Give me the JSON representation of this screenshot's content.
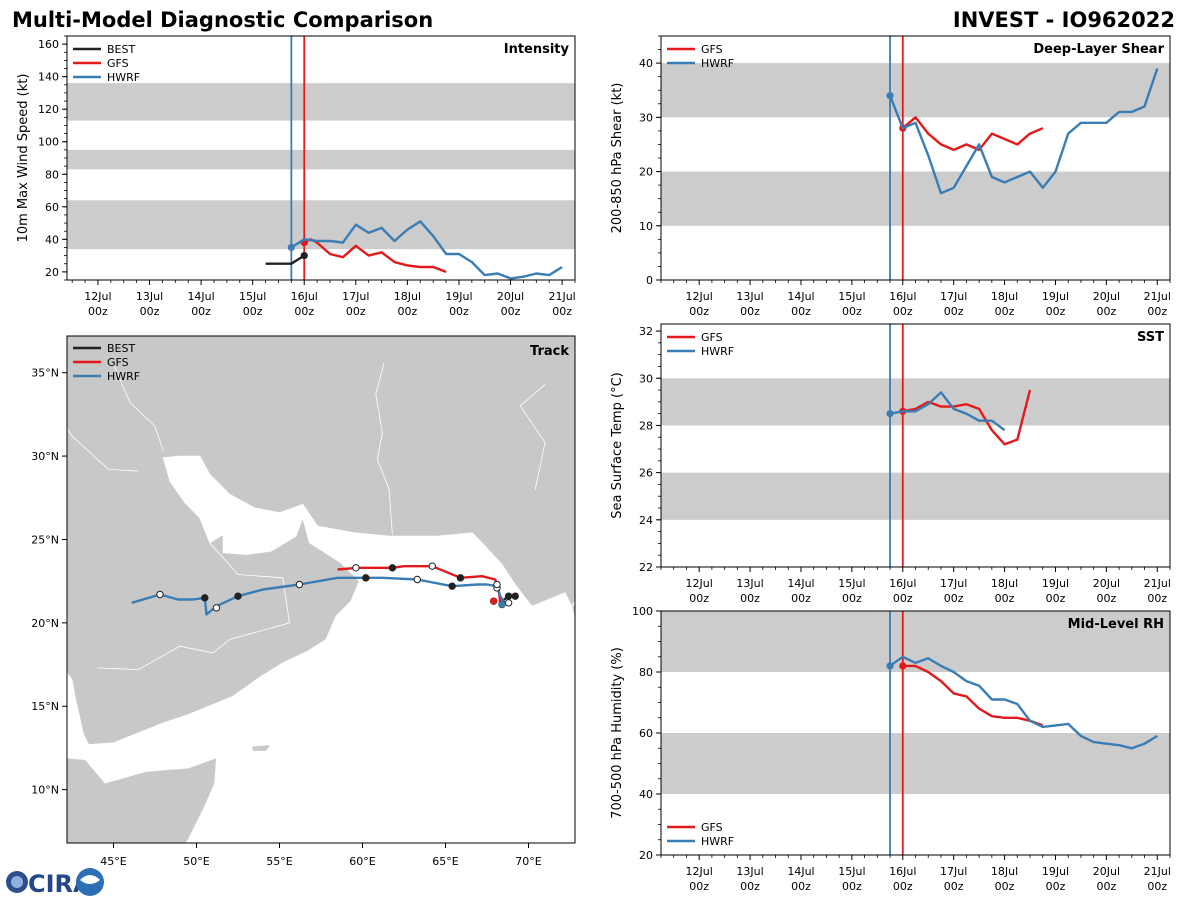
{
  "header": {
    "title": "Multi-Model Diagnostic Comparison",
    "storm": "INVEST - IO962022"
  },
  "colors": {
    "BEST": "#222222",
    "GFS": "#e31a1c",
    "HWRF": "#3a7db5",
    "band": "#cccccc",
    "land": "#c8c8c8"
  },
  "time_ticks": [
    {
      "d": "12Jul",
      "h": "00z"
    },
    {
      "d": "13Jul",
      "h": "00z"
    },
    {
      "d": "14Jul",
      "h": "00z"
    },
    {
      "d": "15Jul",
      "h": "00z"
    },
    {
      "d": "16Jul",
      "h": "00z"
    },
    {
      "d": "17Jul",
      "h": "00z"
    },
    {
      "d": "18Jul",
      "h": "00z"
    },
    {
      "d": "19Jul",
      "h": "00z"
    },
    {
      "d": "20Jul",
      "h": "00z"
    },
    {
      "d": "21Jul",
      "h": "00z"
    }
  ],
  "chart_data": [
    {
      "id": "intensity",
      "type": "line",
      "title": "Intensity",
      "ylabel": "10m Max Wind Speed (kt)",
      "ylim": [
        15,
        165
      ],
      "yticks": [
        20,
        40,
        60,
        80,
        100,
        120,
        140,
        160
      ],
      "xlim_days": [
        11.4,
        21.25
      ],
      "vlines": [
        {
          "day": 15.75,
          "color": "HWRF"
        },
        {
          "day": 16.0,
          "color": "GFS"
        }
      ],
      "bands": [
        [
          34,
          64
        ],
        [
          83,
          95
        ],
        [
          113,
          136
        ]
      ],
      "legend": [
        "BEST",
        "GFS",
        "HWRF"
      ],
      "series": [
        {
          "name": "BEST",
          "x": [
            15.25,
            15.5,
            15.75,
            16.0
          ],
          "y": [
            25,
            25,
            25,
            30
          ],
          "marker": 16.0
        },
        {
          "name": "GFS",
          "x": [
            16.0,
            16.125,
            16.25,
            16.5,
            16.75,
            17.0,
            17.25,
            17.5,
            17.75,
            18.0,
            18.25,
            18.5,
            18.75
          ],
          "y": [
            38,
            40,
            38,
            31,
            29,
            36,
            30,
            32,
            26,
            24,
            23,
            23,
            20
          ],
          "marker": 16.0
        },
        {
          "name": "HWRF",
          "x": [
            15.75,
            16.0,
            16.25,
            16.5,
            16.75,
            17.0,
            17.25,
            17.5,
            17.75,
            18.0,
            18.25,
            18.5,
            18.75,
            19.0,
            19.25,
            19.5,
            19.75,
            20.0,
            20.25,
            20.5,
            20.75,
            21.0
          ],
          "y": [
            35,
            40,
            39,
            39,
            38,
            49,
            44,
            47,
            39,
            46,
            51,
            42,
            31,
            31,
            26,
            18,
            19,
            16,
            17,
            19,
            18,
            23
          ],
          "marker": 15.75
        }
      ]
    },
    {
      "id": "shear",
      "type": "line",
      "title": "Deep-Layer Shear",
      "ylabel": "200-850 hPa Shear (kt)",
      "ylim": [
        0,
        45
      ],
      "yticks": [
        0,
        10,
        20,
        30,
        40
      ],
      "xlim_days": [
        11.25,
        21.25
      ],
      "vlines": [
        {
          "day": 15.75,
          "color": "HWRF"
        },
        {
          "day": 16.0,
          "color": "GFS"
        }
      ],
      "bands": [
        [
          10,
          20
        ],
        [
          30,
          40
        ]
      ],
      "legend": [
        "GFS",
        "HWRF"
      ],
      "series": [
        {
          "name": "GFS",
          "x": [
            16.0,
            16.25,
            16.5,
            16.75,
            17.0,
            17.25,
            17.5,
            17.75,
            18.0,
            18.25,
            18.5,
            18.75
          ],
          "y": [
            28,
            30,
            27,
            25,
            24,
            25,
            24,
            27,
            26,
            25,
            27,
            28
          ],
          "marker": 16.0
        },
        {
          "name": "HWRF",
          "x": [
            15.75,
            16.0,
            16.25,
            16.5,
            16.75,
            17.0,
            17.25,
            17.5,
            17.75,
            18.0,
            18.25,
            18.5,
            18.75,
            19.0,
            19.25,
            19.5,
            19.75,
            20.0,
            20.25,
            20.5,
            20.75,
            21.0
          ],
          "y": [
            34,
            28,
            29,
            23,
            16,
            17,
            21,
            25,
            19,
            18,
            19,
            20,
            17,
            20,
            27,
            29,
            29,
            29,
            31,
            31,
            32,
            39
          ],
          "marker": 15.75
        }
      ]
    },
    {
      "id": "sst",
      "type": "line",
      "title": "SST",
      "ylabel": "Sea Surface Temp (°C)",
      "ylim": [
        22,
        32.3
      ],
      "yticks": [
        22,
        24,
        26,
        28,
        30,
        32
      ],
      "xlim_days": [
        11.25,
        21.25
      ],
      "vlines": [
        {
          "day": 15.75,
          "color": "HWRF"
        },
        {
          "day": 16.0,
          "color": "GFS"
        }
      ],
      "bands": [
        [
          24,
          26
        ],
        [
          28,
          30
        ]
      ],
      "legend": [
        "GFS",
        "HWRF"
      ],
      "series": [
        {
          "name": "GFS",
          "x": [
            16.0,
            16.25,
            16.5,
            16.75,
            17.0,
            17.25,
            17.5,
            17.75,
            18.0,
            18.25,
            18.5
          ],
          "y": [
            28.6,
            28.7,
            29.0,
            28.8,
            28.8,
            28.9,
            28.7,
            27.8,
            27.2,
            27.4,
            29.5
          ],
          "marker": 16.0
        },
        {
          "name": "HWRF",
          "x": [
            15.75,
            16.0,
            16.25,
            16.5,
            16.75,
            17.0,
            17.25,
            17.5,
            17.75,
            18.0
          ],
          "y": [
            28.5,
            28.6,
            28.6,
            28.9,
            29.4,
            28.7,
            28.5,
            28.2,
            28.2,
            27.8
          ],
          "marker": 15.75
        }
      ]
    },
    {
      "id": "rh",
      "type": "line",
      "title": "Mid-Level RH",
      "ylabel": "700-500 hPa Humidity (%)",
      "ylim": [
        20,
        100
      ],
      "yticks": [
        20,
        40,
        60,
        80,
        100
      ],
      "xlim_days": [
        11.25,
        21.25
      ],
      "vlines": [
        {
          "day": 15.75,
          "color": "HWRF"
        },
        {
          "day": 16.0,
          "color": "GFS"
        }
      ],
      "bands": [
        [
          40,
          60
        ],
        [
          80,
          100
        ]
      ],
      "legend": [
        "GFS",
        "HWRF"
      ],
      "series": [
        {
          "name": "GFS",
          "x": [
            16.0,
            16.25,
            16.5,
            16.75,
            17.0,
            17.25,
            17.5,
            17.75,
            18.0,
            18.25,
            18.5,
            18.75
          ],
          "y": [
            82,
            82,
            80,
            77,
            73,
            72,
            68,
            65.5,
            65,
            65,
            64,
            62.5
          ],
          "marker": 16.0
        },
        {
          "name": "HWRF",
          "x": [
            15.75,
            16.0,
            16.25,
            16.5,
            16.75,
            17.0,
            17.25,
            17.5,
            17.75,
            18.0,
            18.25,
            18.5,
            18.75,
            19.0,
            19.25,
            19.5,
            19.75,
            20.0,
            20.25,
            20.5,
            20.75,
            21.0
          ],
          "y": [
            82,
            85,
            83,
            84.5,
            82,
            80,
            77,
            75.5,
            71,
            71,
            69.5,
            64,
            62,
            62.5,
            63,
            59,
            57,
            56.5,
            56,
            55,
            56.5,
            59
          ],
          "marker": 15.75
        }
      ]
    },
    {
      "id": "track",
      "type": "scatter",
      "title": "Track",
      "xlim_lon": [
        42.2,
        72.8
      ],
      "ylim_lat": [
        6.8,
        37.2
      ],
      "lon_ticks": [
        45,
        50,
        55,
        60,
        65,
        70
      ],
      "lon_labels": [
        "45°E",
        "50°E",
        "55°E",
        "60°E",
        "65°E",
        "70°E"
      ],
      "lat_ticks": [
        10,
        15,
        20,
        25,
        30,
        35
      ],
      "lat_labels": [
        "10°N",
        "15°N",
        "20°N",
        "25°N",
        "30°N",
        "35°N"
      ],
      "legend": [
        "BEST",
        "GFS",
        "HWRF"
      ],
      "series": [
        {
          "name": "BEST",
          "lon": [
            69.2,
            68.8,
            68.4
          ],
          "lat": [
            21.6,
            21.6,
            21.3
          ]
        },
        {
          "name": "GFS",
          "lon": [
            68.3,
            68.2,
            68.0,
            67.2,
            65.9,
            64.2,
            62.5,
            61.8,
            60.3,
            59.7,
            58.5
          ],
          "lat": [
            21.2,
            22.0,
            22.6,
            22.8,
            22.7,
            23.4,
            23.4,
            23.3,
            23.3,
            23.3,
            23.2
          ]
        },
        {
          "name": "HWRF",
          "lon": [
            68.6,
            68.5,
            68.3,
            68.1,
            67.5,
            66.9,
            65.4,
            63.3,
            61.2,
            60.2,
            58.5,
            56.2,
            54.0,
            52.5,
            51.2,
            50.6,
            50.5,
            49.8,
            48.9,
            47.8,
            46.1
          ],
          "lat": [
            21.2,
            21.3,
            21.6,
            22.2,
            22.3,
            22.3,
            22.2,
            22.6,
            22.7,
            22.7,
            22.7,
            22.3,
            22.0,
            21.6,
            21.0,
            20.5,
            21.5,
            21.4,
            21.4,
            21.7,
            21.2
          ]
        }
      ],
      "open_markers": [
        {
          "name": "HWRF",
          "lon": [
            68.8,
            68.1,
            63.3,
            56.2,
            51.2,
            47.8
          ],
          "lat": [
            21.2,
            22.1,
            22.6,
            22.3,
            20.9,
            21.7
          ]
        },
        {
          "name": "GFS",
          "lon": [
            68.1,
            64.2,
            59.6
          ],
          "lat": [
            22.3,
            23.4,
            23.3
          ]
        }
      ],
      "filled_markers": [
        {
          "name": "HWRF",
          "lon": [
            68.4,
            65.4,
            60.2,
            52.5,
            50.5
          ],
          "lat": [
            21.1,
            22.2,
            22.7,
            21.6,
            21.5
          ]
        },
        {
          "name": "GFS",
          "lon": [
            67.9,
            65.9,
            61.8
          ],
          "lat": [
            21.3,
            22.7,
            23.3
          ]
        },
        {
          "name": "BEST",
          "lon": [
            69.2,
            68.8
          ],
          "lat": [
            21.6,
            21.6
          ]
        }
      ]
    }
  ],
  "logo": {
    "text": "CIRA"
  }
}
